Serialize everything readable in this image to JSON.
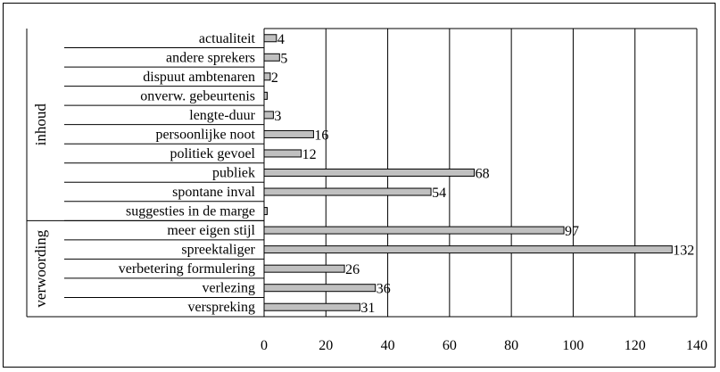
{
  "chart_data": {
    "type": "bar",
    "orientation": "horizontal",
    "title": "",
    "xlabel": "",
    "ylabel": "",
    "xlim": [
      0,
      140
    ],
    "xticks": [
      0,
      20,
      40,
      60,
      80,
      100,
      120,
      140
    ],
    "grid": true,
    "legend": "none",
    "bar_color": "#c0c0c0",
    "groups": [
      {
        "name": "inhoud",
        "categories": [
          "actualiteit",
          "andere sprekers",
          "dispuut ambtenaren",
          "onverw. gebeurtenis",
          "lengte-duur",
          "persoonlijke noot",
          "politiek gevoel",
          "publiek",
          "spontane inval",
          "suggesties in de marge"
        ]
      },
      {
        "name": "verwoording",
        "categories": [
          "meer eigen stijl",
          "spreektaliger",
          "verbetering formulering",
          "verlezing",
          "verspreking"
        ]
      }
    ],
    "categories": [
      "actualiteit",
      "andere sprekers",
      "dispuut ambtenaren",
      "onverw. gebeurtenis",
      "lengte-duur",
      "persoonlijke noot",
      "politiek gevoel",
      "publiek",
      "spontane inval",
      "suggesties in de marge",
      "meer eigen stijl",
      "spreektaliger",
      "verbetering formulering",
      "verlezing",
      "verspreking"
    ],
    "values": [
      4,
      5,
      2,
      1,
      3,
      16,
      12,
      68,
      54,
      1,
      97,
      132,
      26,
      36,
      31
    ],
    "data_labels": [
      "4",
      "5",
      "2",
      "",
      "3",
      "16",
      "12",
      "68",
      "54",
      "",
      "97",
      "132",
      "26",
      "36",
      "31"
    ]
  }
}
